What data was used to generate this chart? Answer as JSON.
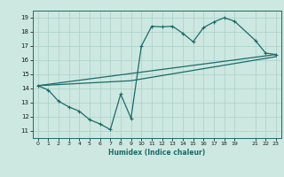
{
  "xlabel": "Humidex (Indice chaleur)",
  "bg_color": "#cde8e0",
  "grid_color": "#aacfc8",
  "line_color": "#1a6b6b",
  "xlim": [
    -0.5,
    23.5
  ],
  "ylim": [
    10.5,
    19.5
  ],
  "xticks": [
    0,
    1,
    2,
    3,
    4,
    5,
    6,
    7,
    8,
    9,
    10,
    11,
    12,
    13,
    14,
    15,
    16,
    17,
    18,
    19,
    21,
    22,
    23
  ],
  "yticks": [
    11,
    12,
    13,
    14,
    15,
    16,
    17,
    18,
    19
  ],
  "series1_x": [
    0,
    1,
    2,
    3,
    4,
    5,
    6,
    7,
    8,
    9,
    10,
    11,
    12,
    13,
    14,
    15,
    16,
    17,
    18,
    19,
    21,
    22,
    23
  ],
  "series1_y": [
    14.2,
    13.9,
    13.1,
    12.7,
    12.4,
    11.8,
    11.5,
    11.1,
    13.6,
    11.9,
    17.0,
    18.4,
    18.35,
    18.4,
    17.9,
    17.3,
    18.3,
    18.7,
    19.0,
    18.75,
    17.4,
    16.5,
    16.4
  ],
  "series2_x": [
    0,
    23
  ],
  "series2_y": [
    14.2,
    16.4
  ],
  "series3_x": [
    0,
    9,
    23
  ],
  "series3_y": [
    14.2,
    14.55,
    16.25
  ]
}
